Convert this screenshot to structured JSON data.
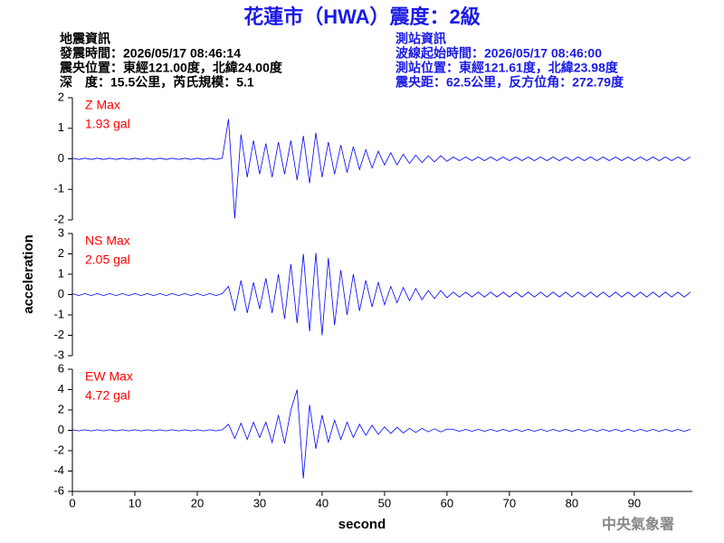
{
  "header": {
    "title": "花蓮市（HWA）震度：2級",
    "left": [
      "地震資訊",
      "發震時間：2026/05/17 08:46:14",
      "震央位置：東經121.00度，北緯24.00度",
      "深　度：15.5公里，芮氏規模：5.1"
    ],
    "right": [
      "測站資訊",
      "波線起始時間：2026/05/17 08:46:00",
      "測站位置：東經121.61度，北緯23.98度",
      "震央距：62.5公里，反方位角：272.79度"
    ]
  },
  "footer": "中央氣象署",
  "chart_data": {
    "type": "line",
    "color": "#0000ff",
    "annotation_color": "#ff0000",
    "xlabel": "second",
    "ylabel": "acceleration",
    "xlim": [
      0,
      99.3
    ],
    "xticks": [
      0,
      10,
      20,
      30,
      40,
      50,
      60,
      70,
      80,
      90
    ],
    "x": [
      0,
      1,
      2,
      3,
      4,
      5,
      6,
      7,
      8,
      9,
      10,
      11,
      12,
      13,
      14,
      15,
      16,
      17,
      18,
      19,
      20,
      21,
      22,
      23,
      24,
      25,
      26,
      27,
      28,
      29,
      30,
      31,
      32,
      33,
      34,
      35,
      36,
      37,
      38,
      39,
      40,
      41,
      42,
      43,
      44,
      45,
      46,
      47,
      48,
      49,
      50,
      51,
      52,
      53,
      54,
      55,
      56,
      57,
      58,
      59,
      60,
      61,
      62,
      63,
      64,
      65,
      66,
      67,
      68,
      69,
      70,
      71,
      72,
      73,
      74,
      75,
      76,
      77,
      78,
      79,
      80,
      81,
      82,
      83,
      84,
      85,
      86,
      87,
      88,
      89,
      90,
      91,
      92,
      93,
      94,
      95,
      96,
      97,
      98,
      99
    ],
    "panels": [
      {
        "name": "Z Max",
        "max_label": "1.93 gal",
        "ylim": [
          -2,
          2
        ],
        "yticks": [
          -2,
          -1,
          0,
          1,
          2
        ],
        "values": [
          0.02,
          -0.02,
          0.02,
          -0.02,
          0.02,
          -0.02,
          0.02,
          -0.02,
          0.02,
          -0.02,
          0.02,
          -0.02,
          0.02,
          -0.02,
          0.02,
          -0.02,
          0.02,
          -0.02,
          0.02,
          -0.02,
          0.02,
          -0.02,
          0.02,
          -0.02,
          0.02,
          1.3,
          -1.95,
          0.8,
          -0.6,
          0.6,
          -0.5,
          0.5,
          -0.6,
          0.55,
          -0.5,
          0.6,
          -0.7,
          0.75,
          -0.8,
          0.85,
          -0.6,
          0.55,
          -0.5,
          0.45,
          -0.45,
          0.4,
          -0.35,
          0.3,
          -0.3,
          0.25,
          -0.2,
          0.2,
          -0.2,
          0.15,
          -0.15,
          0.12,
          -0.12,
          0.1,
          -0.1,
          0.1,
          -0.08,
          0.06,
          -0.06,
          0.06,
          -0.06,
          0.06,
          -0.06,
          0.06,
          -0.06,
          0.06,
          -0.06,
          0.06,
          -0.06,
          0.06,
          -0.06,
          0.06,
          -0.06,
          0.06,
          -0.06,
          0.06,
          -0.06,
          0.06,
          -0.06,
          0.06,
          -0.06,
          0.06,
          -0.06,
          0.06,
          -0.06,
          0.06,
          -0.06,
          0.06,
          -0.06,
          0.06,
          -0.06,
          0.06,
          -0.06,
          0.06,
          -0.06,
          0.06
        ]
      },
      {
        "name": "NS Max",
        "max_label": "2.05 gal",
        "ylim": [
          -3,
          3
        ],
        "yticks": [
          -3,
          -2,
          -1,
          0,
          1,
          2,
          3
        ],
        "values": [
          0.05,
          -0.05,
          0.05,
          -0.05,
          0.05,
          -0.05,
          0.05,
          -0.05,
          0.05,
          -0.05,
          0.05,
          -0.05,
          0.05,
          -0.05,
          0.05,
          -0.05,
          0.05,
          -0.05,
          0.05,
          -0.05,
          0.05,
          -0.05,
          0.05,
          -0.05,
          0.05,
          0.4,
          -0.8,
          0.7,
          -0.9,
          0.6,
          -0.7,
          0.8,
          -0.9,
          1.0,
          -1.2,
          1.5,
          -1.4,
          2.0,
          -1.8,
          2.05,
          -2.0,
          1.8,
          -1.5,
          1.2,
          -1.0,
          1.0,
          -0.8,
          0.7,
          -0.6,
          0.6,
          -0.5,
          0.4,
          -0.4,
          0.35,
          -0.3,
          0.3,
          -0.25,
          0.2,
          -0.2,
          0.2,
          -0.15,
          0.12,
          -0.12,
          0.12,
          -0.12,
          0.12,
          -0.12,
          0.12,
          -0.12,
          0.12,
          -0.12,
          0.12,
          -0.12,
          0.12,
          -0.12,
          0.12,
          -0.12,
          0.12,
          -0.12,
          0.12,
          -0.12,
          0.12,
          -0.12,
          0.12,
          -0.12,
          0.12,
          -0.12,
          0.12,
          -0.12,
          0.12,
          -0.12,
          0.12,
          -0.12,
          0.12,
          -0.12,
          0.12,
          -0.12,
          0.12,
          -0.12,
          0.12
        ]
      },
      {
        "name": "EW Max",
        "max_label": "4.72 gal",
        "ylim": [
          -6,
          6
        ],
        "yticks": [
          -6,
          -4,
          -2,
          0,
          2,
          4,
          6
        ],
        "values": [
          0.05,
          -0.05,
          0.05,
          -0.05,
          0.05,
          -0.05,
          0.05,
          -0.05,
          0.05,
          -0.05,
          0.05,
          -0.05,
          0.05,
          -0.05,
          0.05,
          -0.05,
          0.05,
          -0.05,
          0.05,
          -0.05,
          0.05,
          -0.05,
          0.05,
          -0.05,
          0.05,
          0.6,
          -0.8,
          0.7,
          -0.9,
          0.8,
          -0.7,
          0.8,
          -1.2,
          1.5,
          -1.3,
          2.0,
          4.0,
          -4.72,
          2.5,
          -1.8,
          1.5,
          -1.2,
          1.0,
          -0.9,
          0.8,
          -0.7,
          0.6,
          -0.5,
          0.5,
          -0.4,
          0.35,
          -0.3,
          0.3,
          -0.25,
          0.2,
          -0.2,
          0.2,
          -0.15,
          0.15,
          -0.15,
          0.12,
          0.1,
          -0.1,
          0.1,
          -0.1,
          0.1,
          -0.1,
          0.1,
          -0.1,
          0.1,
          -0.1,
          0.1,
          -0.1,
          0.1,
          -0.1,
          0.1,
          -0.1,
          0.1,
          -0.1,
          0.1,
          -0.1,
          0.1,
          -0.1,
          0.1,
          -0.1,
          0.1,
          -0.1,
          0.1,
          -0.1,
          0.1,
          -0.1,
          0.1,
          -0.1,
          0.1,
          -0.1,
          0.1,
          -0.1,
          0.1,
          -0.1,
          0.1
        ]
      }
    ]
  }
}
